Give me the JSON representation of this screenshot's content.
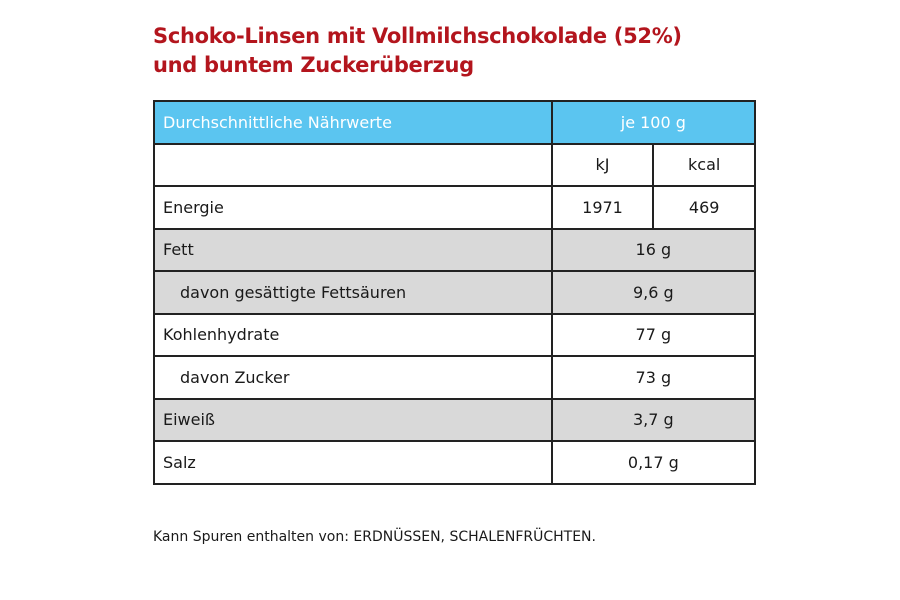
{
  "title_line1": "Schoko-Linsen mit Vollmilchschokolade (52%)",
  "title_line2": "und buntem Zuckerüberzug",
  "colors": {
    "title": "#b3151d",
    "header": "#5bc5f0",
    "shaded": "#d9d9d9"
  },
  "table": {
    "header_label": "Durchschnittliche Nährwerte",
    "header_value": "je 100 g",
    "unit_kj": "kJ",
    "unit_kcal": "kcal",
    "energy": {
      "label": "Energie",
      "kj": "1971",
      "kcal": "469"
    },
    "rows": [
      {
        "label": "Fett",
        "value": "16 g"
      },
      {
        "label": "davon gesättigte Fettsäuren",
        "value": "9,6 g"
      },
      {
        "label": "Kohlenhydrate",
        "value": "77 g"
      },
      {
        "label": "davon Zucker",
        "value": "73 g"
      },
      {
        "label": "Eiweiß",
        "value": "3,7 g"
      },
      {
        "label": "Salz",
        "value": "0,17 g"
      }
    ]
  },
  "note": "Kann Spuren enthalten von: ERDNÜSSEN, SCHALENFRÜCHTEN."
}
